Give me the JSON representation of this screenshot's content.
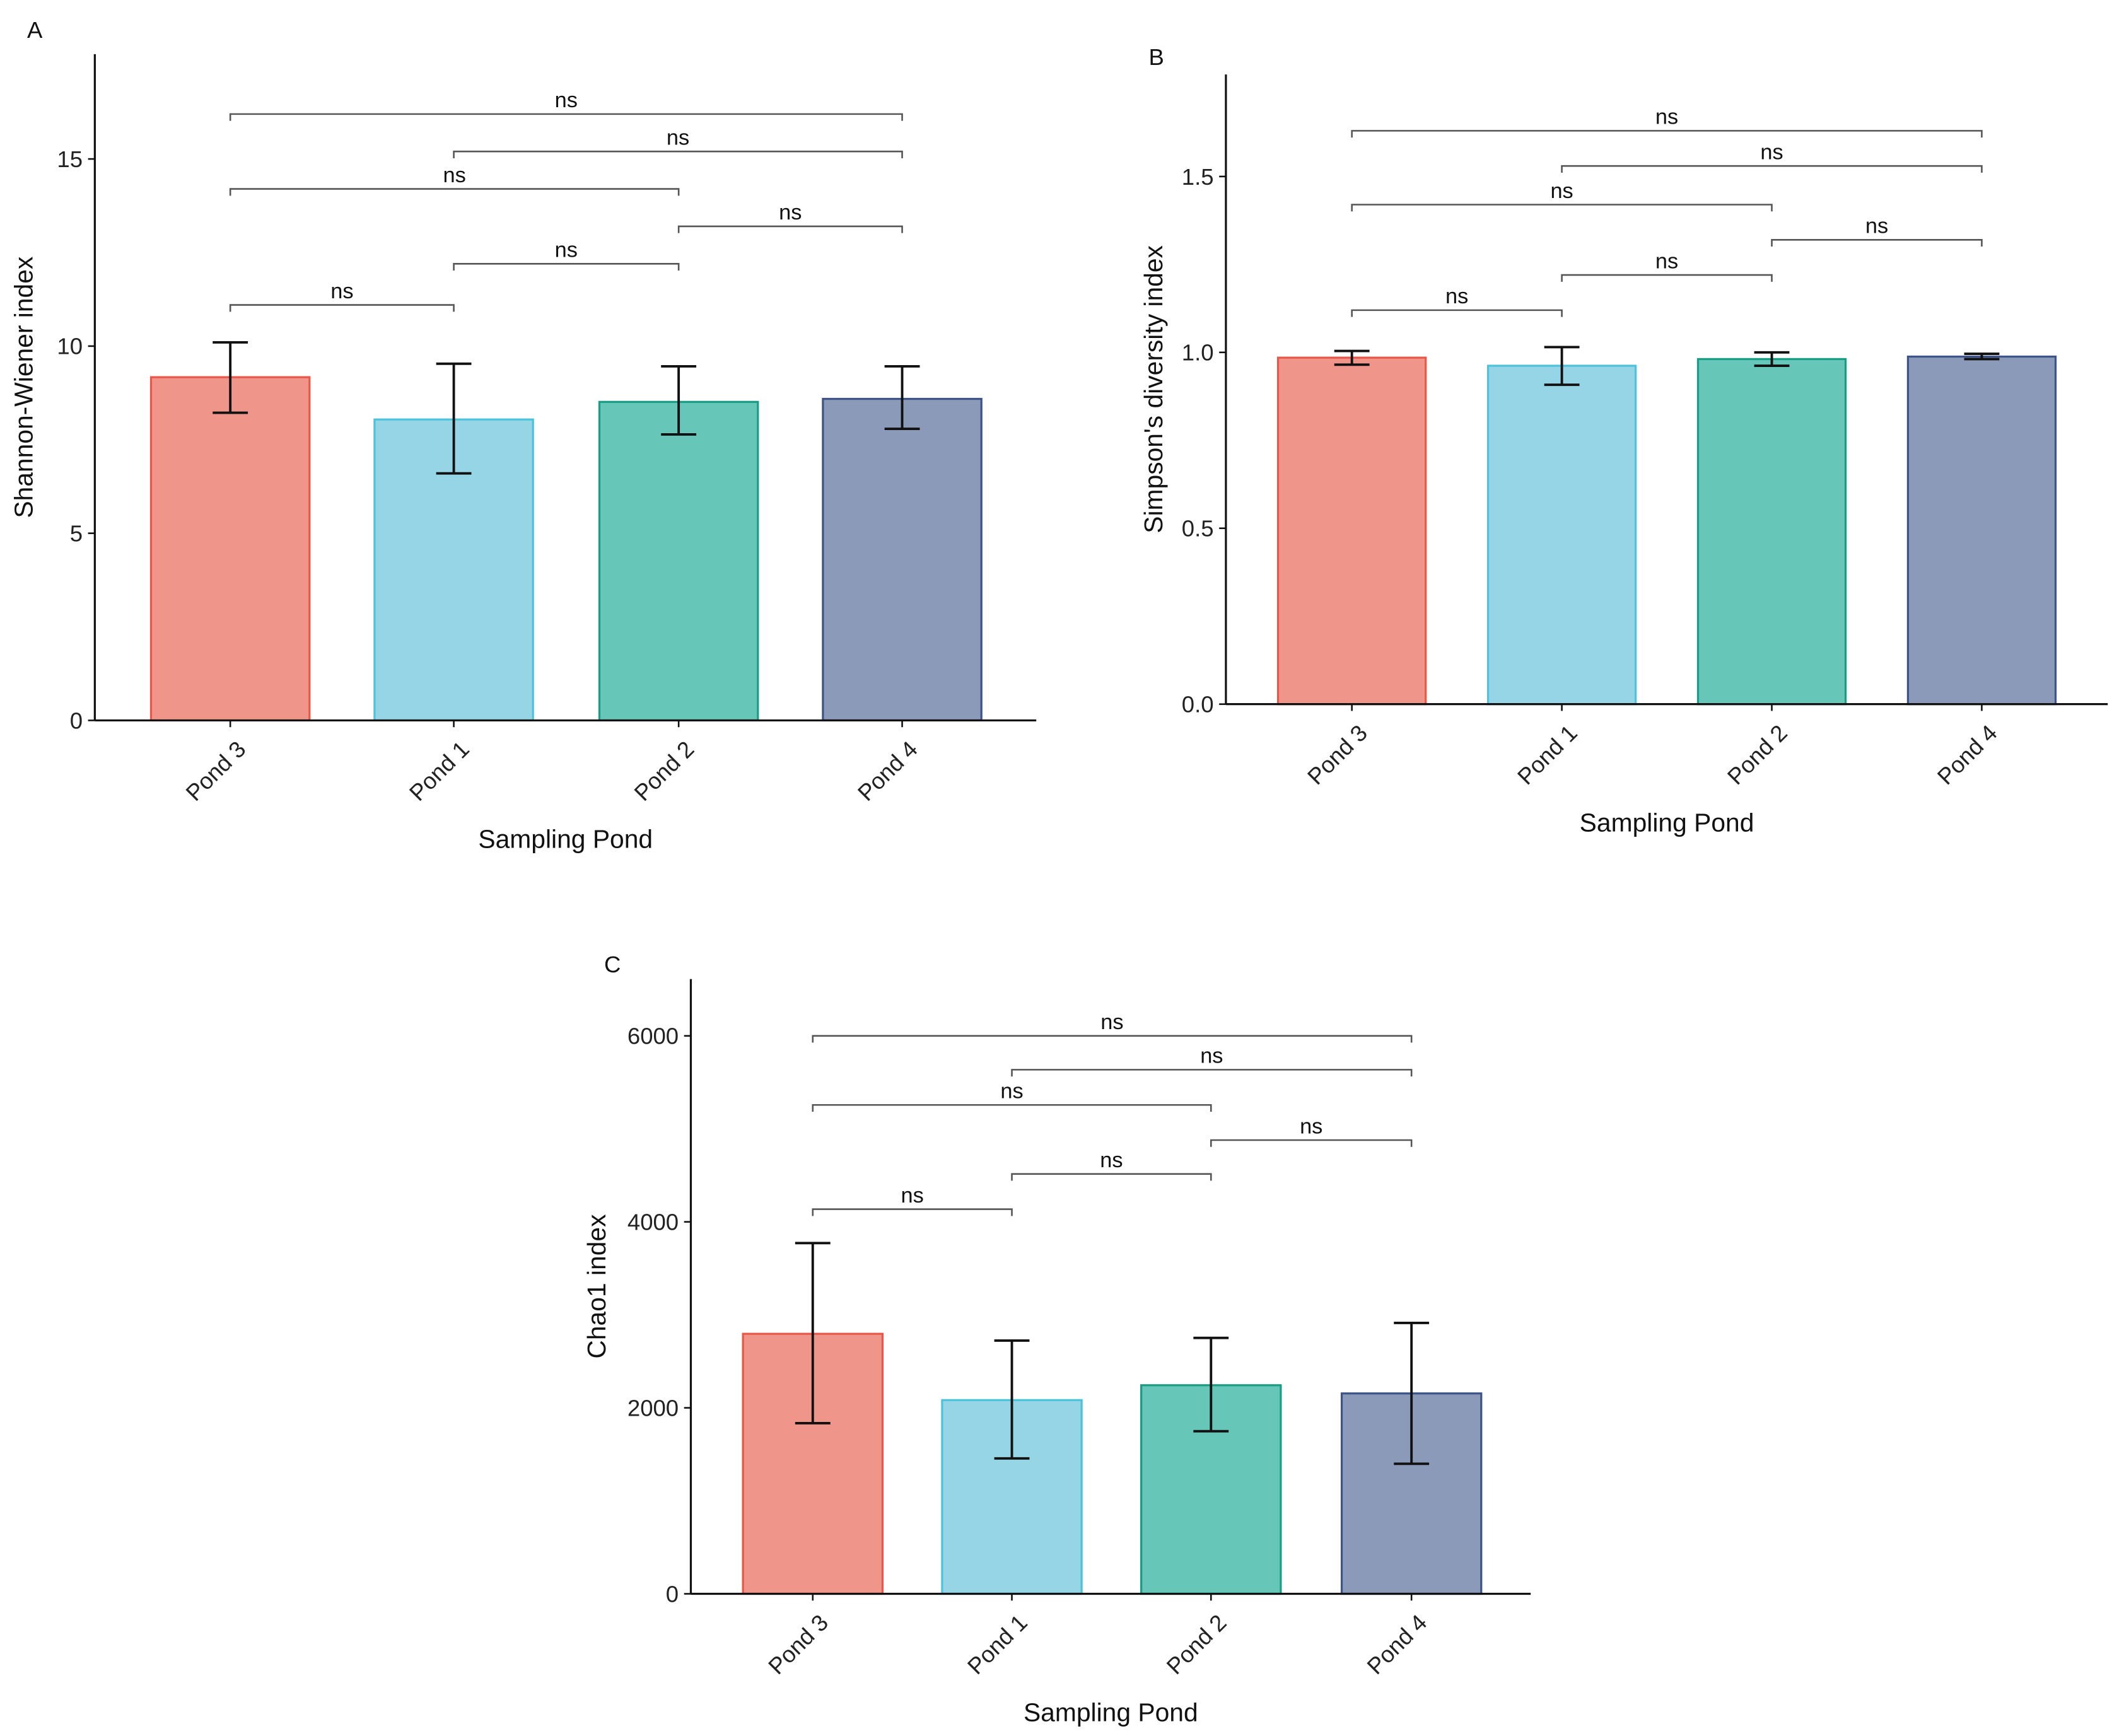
{
  "colors": {
    "fills": [
      "#F0958A",
      "#95D5E5",
      "#66C6B8",
      "#8B9AB8"
    ],
    "strokes": [
      "#E8574A",
      "#4CC3DB",
      "#1A9C85",
      "#3C5488"
    ]
  },
  "chart_data": [
    {
      "panel": "A",
      "type": "bar",
      "categories": [
        "Pond 3",
        "Pond 1",
        "Pond 2",
        "Pond 4"
      ],
      "values": [
        9.17,
        8.04,
        8.51,
        8.59
      ],
      "error_upper": [
        10.1,
        9.53,
        9.46,
        9.46
      ],
      "error_lower": [
        8.22,
        6.6,
        7.64,
        7.79
      ],
      "xlabel": "Sampling Pond",
      "ylabel": "Shannon-Wiener index",
      "ylim": [
        0,
        17.8
      ],
      "yticks": [
        0,
        5,
        10,
        15
      ],
      "ytick_labels": [
        "0",
        "5",
        "10",
        "15"
      ],
      "comparisons": [
        {
          "from": 0,
          "to": 3,
          "y": 16.2,
          "label": "ns"
        },
        {
          "from": 1,
          "to": 3,
          "y": 15.2,
          "label": "ns"
        },
        {
          "from": 0,
          "to": 2,
          "y": 14.2,
          "label": "ns"
        },
        {
          "from": 2,
          "to": 3,
          "y": 13.2,
          "label": "ns"
        },
        {
          "from": 1,
          "to": 2,
          "y": 12.2,
          "label": "ns"
        },
        {
          "from": 0,
          "to": 1,
          "y": 11.1,
          "label": "ns"
        }
      ]
    },
    {
      "panel": "B",
      "type": "bar",
      "categories": [
        "Pond 3",
        "Pond 1",
        "Pond 2",
        "Pond 4"
      ],
      "values": [
        0.985,
        0.962,
        0.981,
        0.988
      ],
      "error_upper": [
        1.004,
        1.015,
        1.0,
        0.996
      ],
      "error_lower": [
        0.965,
        0.908,
        0.962,
        0.981
      ],
      "xlabel": "Sampling Pond",
      "ylabel": "Simpson's diversity index",
      "ylim": [
        0,
        1.79
      ],
      "yticks": [
        0,
        0.5,
        1.0,
        1.5
      ],
      "ytick_labels": [
        "0.0",
        "0.5",
        "1.0",
        "1.5"
      ],
      "comparisons": [
        {
          "from": 0,
          "to": 3,
          "y": 1.63,
          "label": "ns"
        },
        {
          "from": 1,
          "to": 3,
          "y": 1.53,
          "label": "ns"
        },
        {
          "from": 0,
          "to": 2,
          "y": 1.42,
          "label": "ns"
        },
        {
          "from": 2,
          "to": 3,
          "y": 1.32,
          "label": "ns"
        },
        {
          "from": 1,
          "to": 2,
          "y": 1.22,
          "label": "ns"
        },
        {
          "from": 0,
          "to": 1,
          "y": 1.12,
          "label": "ns"
        }
      ]
    },
    {
      "panel": "C",
      "type": "bar",
      "categories": [
        "Pond 3",
        "Pond 1",
        "Pond 2",
        "Pond 4"
      ],
      "values": [
        2796,
        2083,
        2243,
        2155
      ],
      "error_upper": [
        3772,
        2723,
        2752,
        2913
      ],
      "error_lower": [
        1835,
        1456,
        1748,
        1398
      ],
      "xlabel": "Sampling Pond",
      "ylabel": "Chao1 index",
      "ylim": [
        0,
        6611
      ],
      "yticks": [
        0,
        2000,
        4000,
        6000
      ],
      "ytick_labels": [
        "0",
        "2000",
        "4000",
        "6000"
      ],
      "comparisons": [
        {
          "from": 0,
          "to": 3,
          "y": 6000,
          "label": "ns"
        },
        {
          "from": 1,
          "to": 3,
          "y": 5636,
          "label": "ns"
        },
        {
          "from": 0,
          "to": 2,
          "y": 5257,
          "label": "ns"
        },
        {
          "from": 2,
          "to": 3,
          "y": 4879,
          "label": "ns"
        },
        {
          "from": 1,
          "to": 2,
          "y": 4515,
          "label": "ns"
        },
        {
          "from": 0,
          "to": 1,
          "y": 4136,
          "label": "ns"
        }
      ]
    }
  ]
}
